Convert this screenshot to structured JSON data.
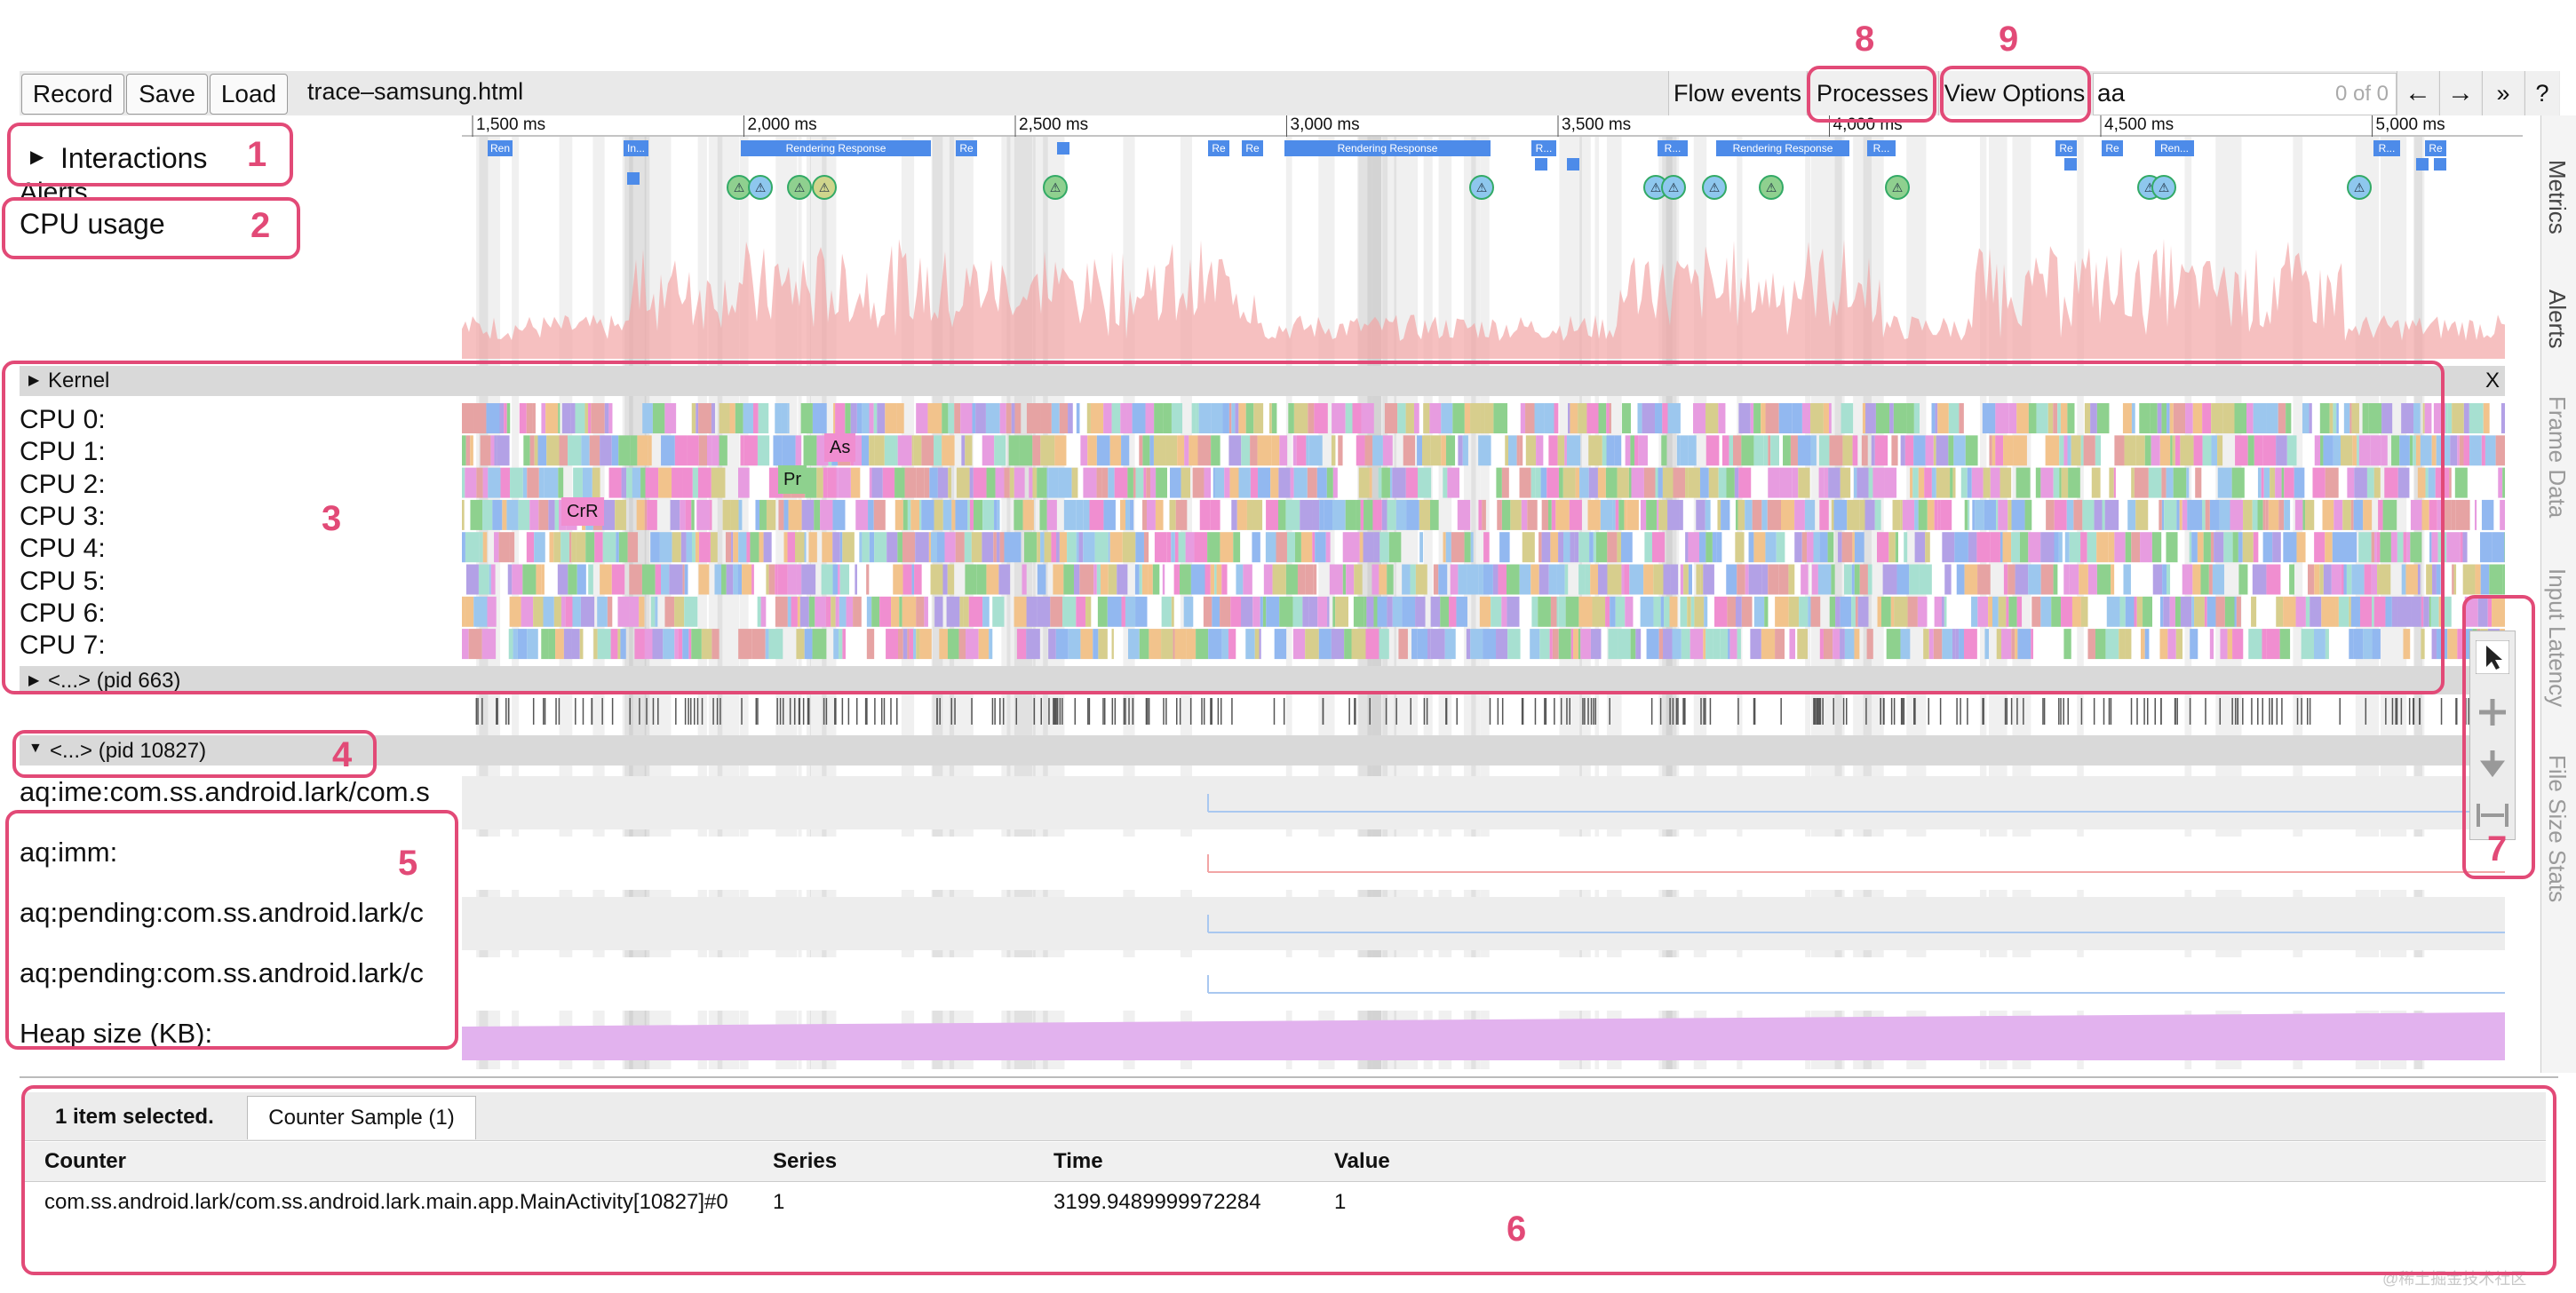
{
  "toolbar": {
    "record": "Record",
    "save": "Save",
    "load": "Load",
    "filename": "trace–samsung.html",
    "flow_events": "Flow events",
    "processes": "Processes",
    "view_options": "View Options",
    "search_value": "aa",
    "match_count": "0 of 0",
    "prev": "←",
    "next": "→",
    "more": "»",
    "help": "?"
  },
  "ruler": [
    "1,500 ms",
    "2,000 ms",
    "2,500 ms",
    "3,000 ms",
    "3,500 ms",
    "4,000 ms",
    "4,500 ms",
    "5,000 ms"
  ],
  "tracks": {
    "interactions": "Interactions",
    "alerts": "Alerts",
    "cpu_usage": "CPU usage",
    "kernel": "Kernel",
    "kernel_close": "X",
    "cpus": [
      "CPU 0:",
      "CPU 1:",
      "CPU 2:",
      "CPU 3:",
      "CPU 4:",
      "CPU 5:",
      "CPU 6:",
      "CPU 7:"
    ],
    "pid663": "<...> (pid 663)",
    "pid10827": "<...> (pid 10827)",
    "counters": [
      "aq:ime:com.ss.android.lark/com.s",
      "aq:imm:",
      "aq:pending:com.ss.android.lark/c",
      "aq:pending:com.ss.android.lark/c",
      "Heap size (KB):"
    ]
  },
  "slice_labels": {
    "ren1": "Ren",
    "in": "In...",
    "rendering1": "Rendering Response",
    "re1": "Re",
    "re2": "Re",
    "re3": "Re",
    "rendering2": "Rendering Response",
    "r1": "R...",
    "r2": "R...",
    "rendering3": "Rendering Response",
    "r3": "R...",
    "re4": "Re",
    "re5": "Re",
    "ren2": "Ren...",
    "r4": "R...",
    "re6": "Re",
    "as": "As",
    "pr": "Pr",
    "crr": "CrR"
  },
  "side_tabs": [
    "Metrics",
    "Alerts",
    "Frame Data",
    "Input Latency",
    "File Size Stats"
  ],
  "bottom": {
    "selected": "1 item selected.",
    "tab": "Counter Sample (1)",
    "headers": [
      "Counter",
      "Series",
      "Time",
      "Value"
    ],
    "row": [
      "com.ss.android.lark/com.ss.android.lark.main.app.MainActivity[10827]#0",
      "1",
      "3199.9489999972284",
      "1"
    ]
  },
  "annotations": [
    "1",
    "2",
    "3",
    "4",
    "5",
    "6",
    "7",
    "8",
    "9"
  ],
  "watermark": "@稀土掘金技术社区",
  "colors": {
    "annotation": "#e24a77",
    "slice_blue": "#4d8be9",
    "cpu_usage": "#f2a5a5",
    "heap": "#e2b2ee"
  }
}
